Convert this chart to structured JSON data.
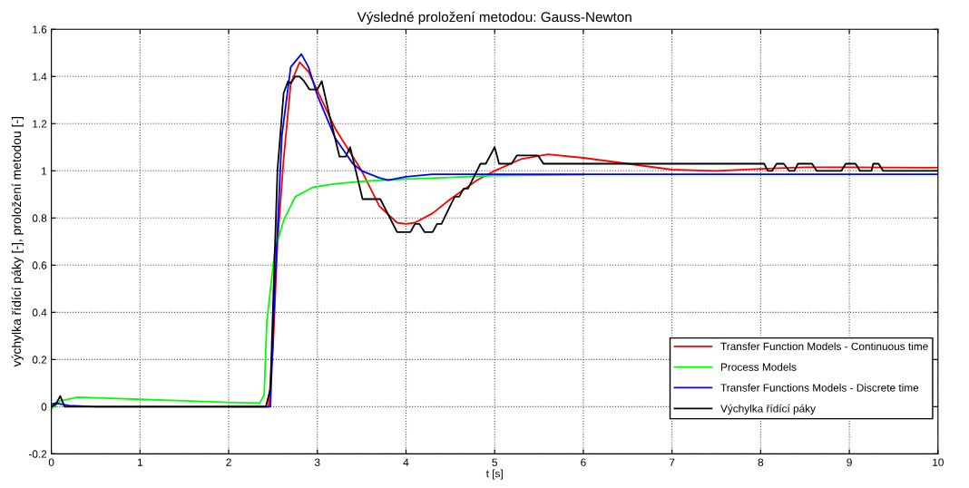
{
  "chart_data": {
    "type": "line",
    "title": "Výsledné proložení metodou: Gauss-Newton",
    "xlabel": "t [s]",
    "ylabel": "výchylka řídící páky [-], proložení metodou [-]",
    "xlim": [
      0,
      10
    ],
    "ylim": [
      -0.2,
      1.6
    ],
    "xticks": [
      0,
      1,
      2,
      3,
      4,
      5,
      6,
      7,
      8,
      9,
      10
    ],
    "yticks": [
      -0.2,
      0,
      0.2,
      0.4,
      0.6,
      0.8,
      1,
      1.2,
      1.4,
      1.6
    ],
    "grid": true,
    "legend": "right",
    "line_style": "solid",
    "marker": "none",
    "series": [
      {
        "name": "Transfer Function Models - Continuous time",
        "color": "#ff0000",
        "x": [
          2,
          2.45,
          2.5,
          2.55,
          2.62,
          2.7,
          2.8,
          2.9,
          3.0,
          3.2,
          3.5,
          3.7,
          3.9,
          4.0,
          4.1,
          4.3,
          4.5,
          4.8,
          5.0,
          5.3,
          5.6,
          6.0,
          6.5,
          7.0,
          7.5,
          8.0,
          8.5,
          9.0,
          10
        ],
        "values": [
          0,
          0,
          0.25,
          0.69,
          1.05,
          1.37,
          1.46,
          1.42,
          1.34,
          1.18,
          1.0,
          0.85,
          0.78,
          0.775,
          0.78,
          0.82,
          0.88,
          0.96,
          1.0,
          1.05,
          1.07,
          1.055,
          1.03,
          1.005,
          1.0,
          1.008,
          1.015,
          1.015,
          1.013
        ]
      },
      {
        "name": "Process Models",
        "color": "#00ff00",
        "x": [
          0,
          0.1,
          0.3,
          0.6,
          1,
          1.5,
          2,
          2.35,
          2.4,
          2.43,
          2.52,
          2.62,
          2.75,
          2.95,
          3.2,
          3.5,
          4.0,
          4.5,
          5.0,
          6.0
        ],
        "values": [
          -0.01,
          0.025,
          0.04,
          0.036,
          0.031,
          0.025,
          0.018,
          0.015,
          0.05,
          0.36,
          0.66,
          0.79,
          0.89,
          0.93,
          0.945,
          0.955,
          0.965,
          0.972,
          0.98,
          0.983
        ]
      },
      {
        "name": "Transfer Functions Models - Discrete time",
        "color": "#0000ff",
        "x": [
          0,
          0.05,
          0.2,
          0.5,
          1,
          2,
          2.47,
          2.52,
          2.6,
          2.7,
          2.82,
          2.9,
          3.0,
          3.2,
          3.4,
          3.5,
          3.7,
          3.8,
          4.0,
          4.3,
          5,
          6,
          7,
          8,
          9,
          10
        ],
        "values": [
          0.01,
          0.015,
          0.005,
          0,
          0,
          0,
          0,
          0.5,
          1.15,
          1.44,
          1.495,
          1.44,
          1.32,
          1.14,
          1.03,
          1.0,
          0.97,
          0.96,
          0.975,
          0.985,
          0.985,
          0.985,
          0.985,
          0.985,
          0.985,
          0.985
        ]
      },
      {
        "name": "Výchylka řídící páky",
        "color": "#000000",
        "x": [
          0,
          0.05,
          0.1,
          0.15,
          1,
          2,
          2.42,
          2.47,
          2.55,
          2.62,
          2.67,
          2.7,
          2.75,
          2.8,
          2.85,
          2.91,
          3.0,
          3.05,
          3.14,
          3.25,
          3.32,
          3.37,
          3.51,
          3.71,
          3.9,
          4.05,
          4.1,
          4.15,
          4.21,
          4.3,
          4.35,
          4.4,
          4.49,
          4.55,
          4.6,
          4.65,
          4.7,
          4.84,
          4.9,
          5.0,
          5.05,
          5.19,
          5.25,
          5.49,
          5.55,
          6,
          7,
          8.04,
          8.08,
          8.13,
          8.18,
          8.26,
          8.32,
          8.38,
          8.42,
          8.58,
          8.63,
          8.91,
          8.96,
          9.07,
          9.12,
          9.25,
          9.27,
          9.33,
          9.38,
          10
        ],
        "values": [
          0,
          0.01,
          0.045,
          0,
          0,
          0,
          0,
          0.075,
          1.0,
          1.33,
          1.38,
          1.37,
          1.4,
          1.4,
          1.38,
          1.345,
          1.345,
          1.38,
          1.23,
          1.06,
          1.06,
          1.1,
          0.88,
          0.88,
          0.74,
          0.74,
          0.775,
          0.775,
          0.74,
          0.74,
          0.775,
          0.775,
          0.845,
          0.89,
          0.89,
          0.925,
          0.925,
          1.03,
          1.03,
          1.1,
          1.03,
          1.03,
          1.065,
          1.065,
          1.03,
          1.03,
          1.03,
          1.03,
          1.0,
          1.0,
          1.03,
          1.03,
          1.0,
          1.0,
          1.03,
          1.03,
          1.0,
          1.0,
          1.03,
          1.03,
          1.0,
          1.0,
          1.03,
          1.03,
          1.0,
          1.0
        ]
      }
    ]
  }
}
